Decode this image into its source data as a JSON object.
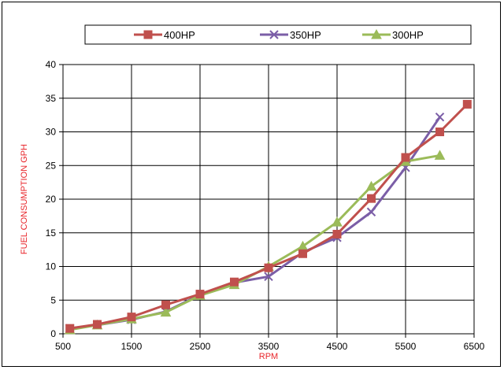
{
  "chart_data": {
    "type": "line",
    "title": "",
    "xlabel": "RPM",
    "ylabel": "FUEL CONSUMPTION GPH",
    "xlim": [
      500,
      6500
    ],
    "ylim": [
      0,
      40
    ],
    "x_ticks": [
      500,
      1500,
      2500,
      3500,
      4500,
      5500,
      6500
    ],
    "y_ticks": [
      0,
      5,
      10,
      15,
      20,
      25,
      30,
      35,
      40
    ],
    "grid": true,
    "legend_position": "top",
    "series": [
      {
        "name": "400HP",
        "color": "#c0504d",
        "marker": "square",
        "x": [
          600,
          1000,
          1500,
          2000,
          2500,
          3000,
          3500,
          4000,
          4500,
          5000,
          5500,
          6000,
          6400
        ],
        "y": [
          0.8,
          1.4,
          2.5,
          4.3,
          5.9,
          7.7,
          9.8,
          11.9,
          14.8,
          20.1,
          26.2,
          30.0,
          34.1
        ]
      },
      {
        "name": "350HP",
        "color": "#7b5ea7",
        "marker": "x",
        "x": [
          600,
          1000,
          1500,
          2000,
          2500,
          3000,
          3500,
          4000,
          4500,
          5000,
          5500,
          6000
        ],
        "y": [
          0.8,
          1.3,
          2.1,
          3.3,
          5.8,
          7.6,
          8.5,
          12.1,
          14.3,
          18.1,
          24.7,
          32.2
        ]
      },
      {
        "name": "300HP",
        "color": "#9bbb59",
        "marker": "triangle",
        "x": [
          600,
          1000,
          1500,
          2000,
          2500,
          3000,
          3500,
          4000,
          4500,
          5000,
          5500,
          6000
        ],
        "y": [
          0.6,
          1.3,
          2.2,
          3.2,
          5.7,
          7.3,
          10.0,
          13.0,
          16.6,
          21.9,
          25.6,
          26.5
        ]
      }
    ]
  }
}
